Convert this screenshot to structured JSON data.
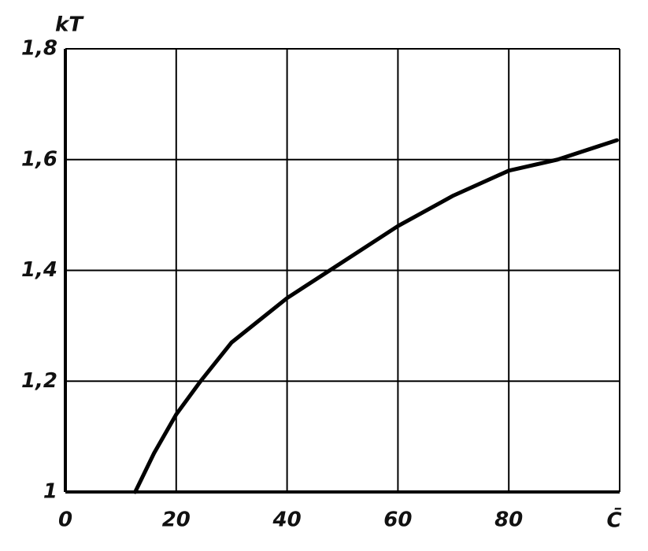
{
  "chart_data": {
    "type": "line",
    "y_label": "kT",
    "x_label": "C̄",
    "x": [
      12.6,
      16,
      20,
      24.4,
      30,
      40,
      47.7,
      60,
      70,
      80,
      88.8,
      99.5
    ],
    "series": [
      {
        "color": "#000000",
        "values": [
          1.0,
          1.07,
          1.14,
          1.2,
          1.27,
          1.35,
          1.4,
          1.48,
          1.535,
          1.58,
          1.6,
          1.635
        ]
      }
    ],
    "xlim": [
      0,
      100
    ],
    "xticks": [
      0,
      20,
      40,
      60,
      80
    ],
    "ylim": [
      1,
      1.8
    ],
    "yticks": [
      1,
      {
        "value": 1.2,
        "label": "1,2"
      },
      {
        "value": 1.4,
        "label": "1,4"
      },
      {
        "value": 1.6,
        "label": "1,6"
      },
      {
        "value": 1.8,
        "label": "1,8"
      }
    ],
    "grid": true
  }
}
